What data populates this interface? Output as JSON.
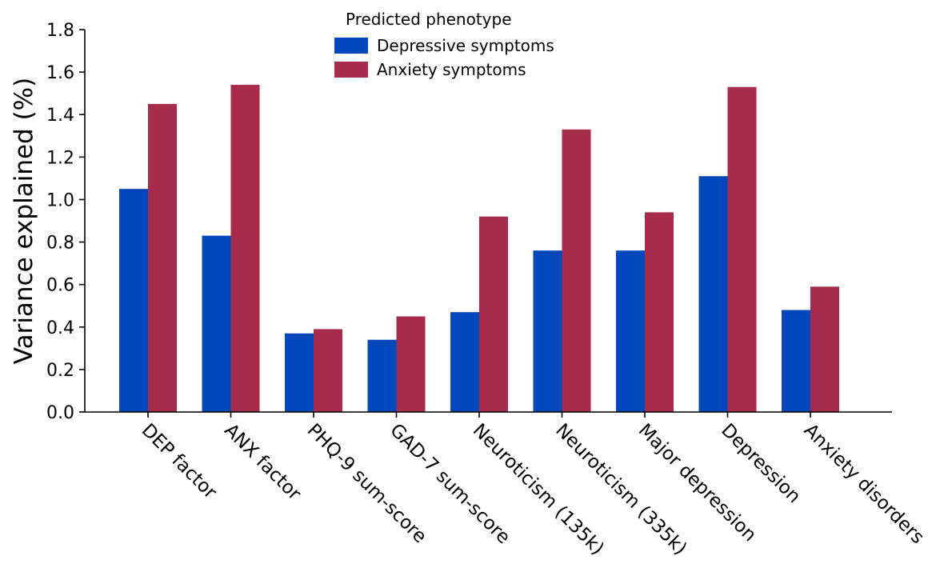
{
  "chart_data": {
    "type": "bar",
    "title": "",
    "xlabel": "",
    "ylabel": "Variance explained (%)",
    "ylim": [
      0,
      1.8
    ],
    "yticks": [
      "0.0",
      "0.2",
      "0.4",
      "0.6",
      "0.8",
      "1.0",
      "1.2",
      "1.4",
      "1.6",
      "1.8"
    ],
    "grid": false,
    "legend": {
      "title": "Predicted phenotype",
      "placement": "top-center"
    },
    "categories": [
      "DEP factor",
      "ANX factor",
      "PHQ-9 sum-score",
      "GAD-7 sum-score",
      "Neuroticism (135k)",
      "Neuroticism (335k)",
      "Major depression",
      "Depression",
      "Anxiety disorders"
    ],
    "series": [
      {
        "name": "Depressive symptoms",
        "color": "#0047BB",
        "values": [
          1.05,
          0.83,
          0.37,
          0.34,
          0.47,
          0.76,
          0.76,
          1.11,
          0.48
        ]
      },
      {
        "name": "Anxiety symptoms",
        "color": "#A72B4A",
        "values": [
          1.45,
          1.54,
          0.39,
          0.45,
          0.92,
          1.33,
          0.94,
          1.53,
          0.59
        ]
      }
    ]
  }
}
